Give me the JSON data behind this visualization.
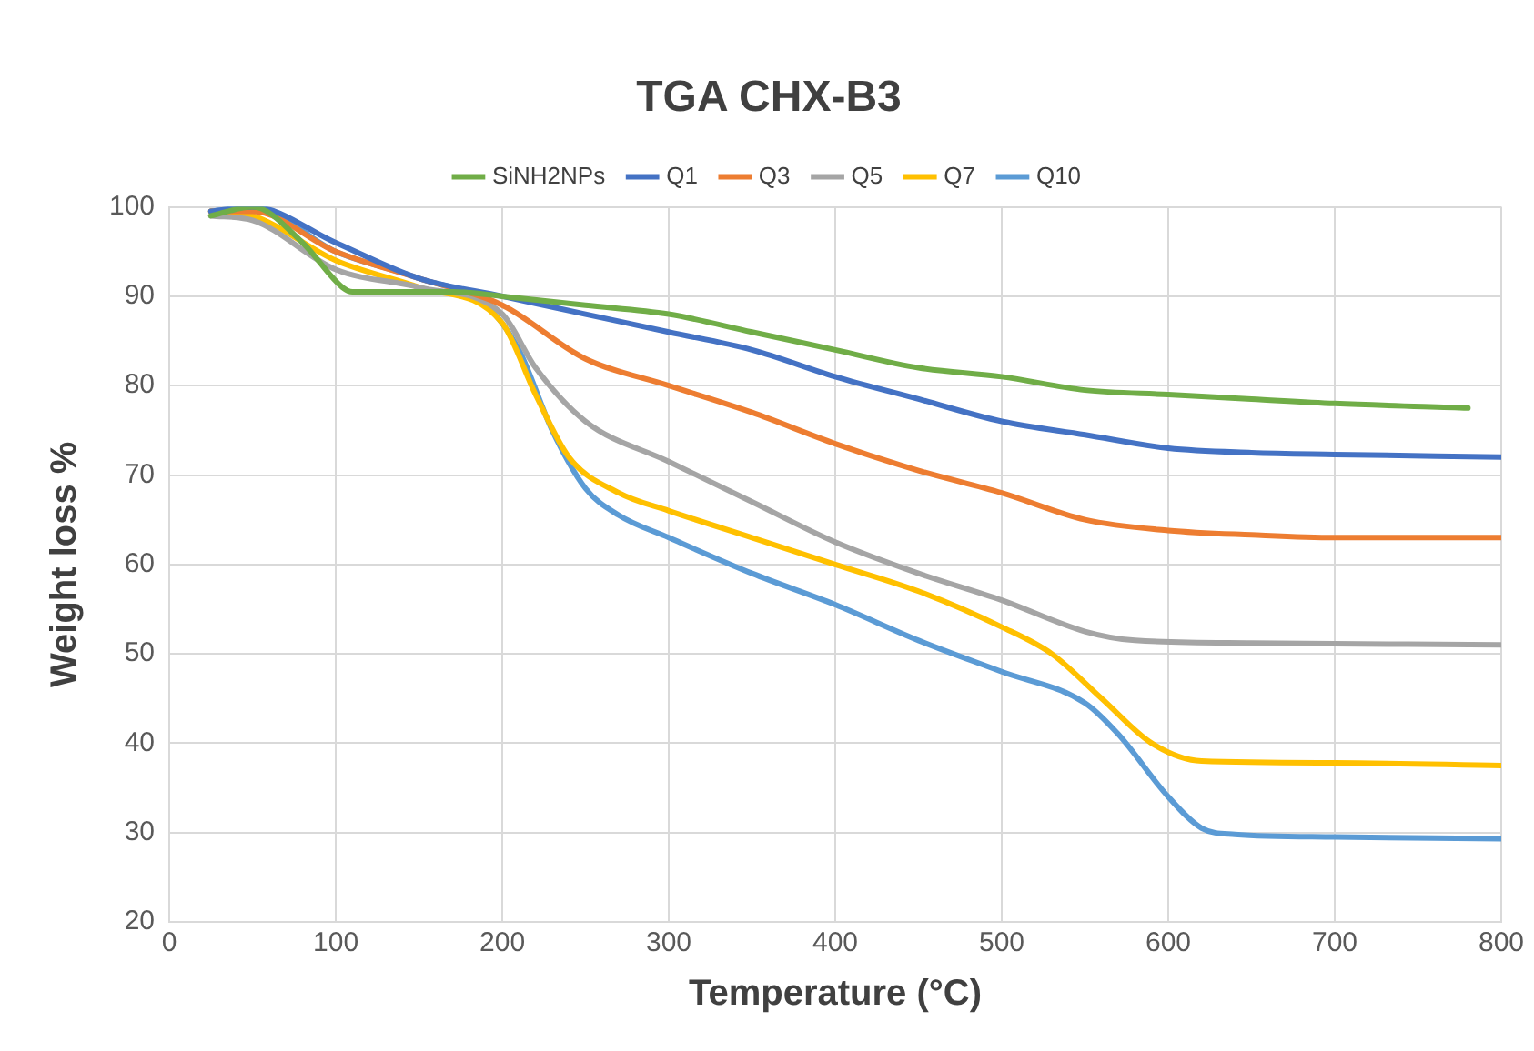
{
  "chart_data": {
    "type": "line",
    "title": "TGA CHX-B3",
    "xlabel": "Temperature (°C)",
    "ylabel": "Weight loss %",
    "xlim": [
      0,
      800
    ],
    "xticks": [
      0,
      100,
      200,
      300,
      400,
      500,
      600,
      700,
      800
    ],
    "ylim": [
      20,
      100
    ],
    "yticks": [
      20,
      30,
      40,
      50,
      60,
      70,
      80,
      90,
      100
    ],
    "grid": true,
    "legend": "top",
    "marker": "none",
    "line_style": "solid",
    "series": [
      {
        "name": "SiNH2NPs",
        "color": "#70ad47",
        "x": [
          25,
          50,
          80,
          104,
          110,
          170,
          200,
          250,
          300,
          350,
          400,
          450,
          500,
          550,
          600,
          650,
          700,
          780
        ],
        "values": [
          99,
          100,
          96,
          91,
          90.5,
          90.5,
          90,
          89,
          88,
          86,
          84,
          82,
          81,
          79.5,
          79,
          78.5,
          78,
          77.5
        ]
      },
      {
        "name": "Q1",
        "color": "#4472c4",
        "x": [
          25,
          50,
          100,
          150,
          200,
          250,
          300,
          350,
          400,
          450,
          500,
          550,
          600,
          650,
          700,
          800
        ],
        "values": [
          99.5,
          100,
          96,
          92,
          90,
          88,
          86,
          84,
          81,
          78.5,
          76,
          74.5,
          73,
          72.5,
          72.3,
          72
        ]
      },
      {
        "name": "Q3",
        "color": "#ed7d31",
        "x": [
          25,
          50,
          100,
          150,
          200,
          250,
          300,
          350,
          400,
          450,
          500,
          550,
          600,
          650,
          700,
          800
        ],
        "values": [
          99.5,
          99.5,
          95,
          92,
          89,
          83,
          80,
          77,
          73.5,
          70.5,
          68,
          65,
          63.8,
          63.3,
          63,
          63
        ]
      },
      {
        "name": "Q5",
        "color": "#a5a5a5",
        "x": [
          25,
          50,
          100,
          150,
          200,
          220,
          250,
          300,
          350,
          400,
          450,
          500,
          550,
          580,
          650,
          800
        ],
        "values": [
          99,
          98.5,
          93,
          91,
          88,
          82,
          76,
          71.5,
          67,
          62.5,
          59,
          56,
          52.5,
          51.5,
          51.2,
          51
        ]
      },
      {
        "name": "Q7",
        "color": "#ffc000",
        "x": [
          25,
          50,
          100,
          150,
          200,
          220,
          240,
          270,
          300,
          350,
          400,
          450,
          500,
          530,
          560,
          590,
          620,
          700,
          800
        ],
        "values": [
          99.5,
          99,
          94,
          91,
          87,
          79,
          72,
          68,
          66,
          63,
          60,
          57,
          53,
          50,
          45,
          40,
          38,
          37.8,
          37.5
        ]
      },
      {
        "name": "Q10",
        "color": "#5b9bd5",
        "x": [
          25,
          50,
          100,
          150,
          190,
          210,
          230,
          250,
          270,
          300,
          350,
          400,
          450,
          500,
          550,
          570,
          600,
          620,
          640,
          700,
          800
        ],
        "values": [
          99.5,
          100,
          95,
          92,
          89,
          84,
          75,
          68.5,
          65.5,
          63,
          59,
          55.5,
          51.5,
          48,
          44.5,
          41,
          34,
          30.5,
          29.8,
          29.5,
          29.3
        ]
      }
    ]
  }
}
